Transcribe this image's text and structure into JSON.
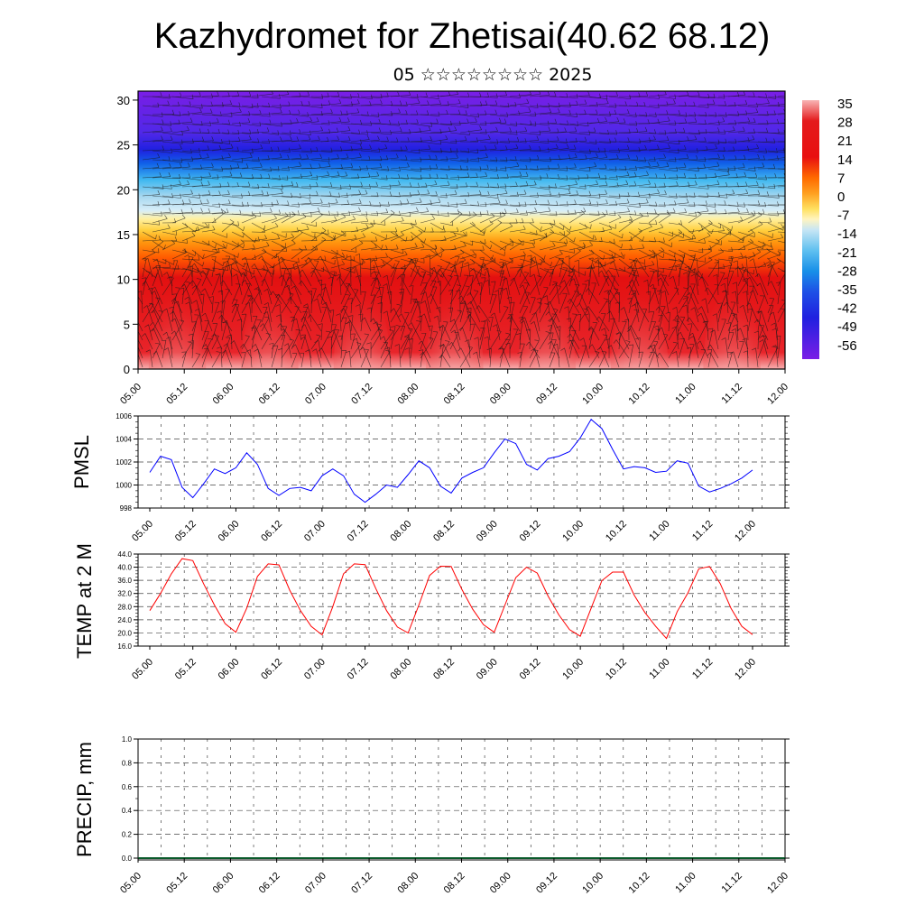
{
  "title": "Kazhydromet for Zhetisai(40.62 68.12)",
  "subtitle": "05 ☆☆☆☆☆☆☆☆ 2025",
  "chart_data": [
    {
      "type": "heatmap",
      "name": "cross-section",
      "x_ticks": [
        "05.00",
        "05.12",
        "06.00",
        "06.12",
        "07.00",
        "07.12",
        "08.00",
        "08.12",
        "09.00",
        "09.12",
        "10.00",
        "10.12",
        "11.00",
        "11.12",
        "12.00"
      ],
      "y_ticks": [
        "0",
        "5",
        "10",
        "15",
        "20",
        "25",
        "30"
      ],
      "ylim": [
        0,
        31
      ],
      "colorbar_labels": [
        "35",
        "28",
        "21",
        "14",
        "7",
        "0",
        "-7",
        "-14",
        "-21",
        "-28",
        "-35",
        "-42",
        "-49",
        "-56"
      ],
      "colors": {
        "warm": "#f8b4b4",
        "red": "#e41a1c",
        "orange": "#ff8c00",
        "yellow": "#ffe060",
        "lightblue": "#a8d8f0",
        "cyan": "#20a8e8",
        "blue": "#1e32e6",
        "purple": "#7a1ee6"
      }
    },
    {
      "type": "line",
      "ylabel": "PMSL",
      "ylim": [
        998,
        1006
      ],
      "y_ticks": [
        "998",
        "1000",
        "1002",
        "1004",
        "1006"
      ],
      "x_ticks": [
        "05.00",
        "05.12",
        "06.00",
        "06.12",
        "07.00",
        "07.12",
        "08.00",
        "08.12",
        "09.00",
        "09.12",
        "10.00",
        "10.12",
        "11.00",
        "11.12",
        "12.00"
      ],
      "color": "#0000ff",
      "series": [
        {
          "values": [
            1001.1,
            1002.5,
            1002.2,
            999.8,
            998.9,
            1000.1,
            1001.4,
            1001.0,
            1001.5,
            1002.8,
            1001.8,
            999.7,
            999.1,
            999.7,
            999.8,
            999.5,
            1000.8,
            1001.4,
            1000.8,
            999.2,
            998.5,
            999.2,
            1000.0,
            999.8,
            1000.9,
            1002.1,
            1001.5,
            999.9,
            999.3,
            1000.6,
            1001.1,
            1001.5,
            1002.8,
            1004.0,
            1003.6,
            1001.8,
            1001.3,
            1002.3,
            1002.5,
            1002.9,
            1004.1,
            1005.7,
            1004.9,
            1003.1,
            1001.4,
            1001.6,
            1001.5,
            1001.1,
            1001.2,
            1002.1,
            1001.9,
            999.9,
            999.4,
            999.7,
            1000.1,
            1000.6,
            1001.3
          ]
        }
      ]
    },
    {
      "type": "line",
      "ylabel": "TEMP at 2 M",
      "ylim": [
        16,
        44
      ],
      "y_ticks": [
        "16.0",
        "20.0",
        "24.0",
        "28.0",
        "32.0",
        "36.0",
        "40.0",
        "44.0"
      ],
      "x_ticks": [
        "05.00",
        "05.12",
        "06.00",
        "06.12",
        "07.00",
        "07.12",
        "08.00",
        "08.12",
        "09.00",
        "09.12",
        "10.00",
        "10.12",
        "11.00",
        "11.12",
        "12.00"
      ],
      "color": "#ff0000",
      "series": [
        {
          "values": [
            26.8,
            32.0,
            38.0,
            42.6,
            42.0,
            35.0,
            28.5,
            22.8,
            20.2,
            27.5,
            37.2,
            41.0,
            40.7,
            33.0,
            26.8,
            22.0,
            19.4,
            28.0,
            38.0,
            41.0,
            40.8,
            33.5,
            26.8,
            21.8,
            20.0,
            28.5,
            37.5,
            40.3,
            40.2,
            33.2,
            27.2,
            22.5,
            20.2,
            28.5,
            36.8,
            40.0,
            38.2,
            31.2,
            25.5,
            21.0,
            19.0,
            27.5,
            35.9,
            38.5,
            38.5,
            31.5,
            26.2,
            22.0,
            18.3,
            26.5,
            32.2,
            39.5,
            40.2,
            35.0,
            27.5,
            22.0,
            19.5
          ]
        }
      ]
    },
    {
      "type": "bar",
      "ylabel": "PRECIP, mm",
      "ylim": [
        0,
        1
      ],
      "y_ticks": [
        "0.0",
        "0.2",
        "0.4",
        "0.6",
        "0.8",
        "1.0"
      ],
      "x_ticks": [
        "05.00",
        "05.12",
        "06.00",
        "06.12",
        "07.00",
        "07.12",
        "08.00",
        "08.12",
        "09.00",
        "09.12",
        "10.00",
        "10.12",
        "11.00",
        "11.12",
        "12.00"
      ],
      "values": []
    }
  ]
}
